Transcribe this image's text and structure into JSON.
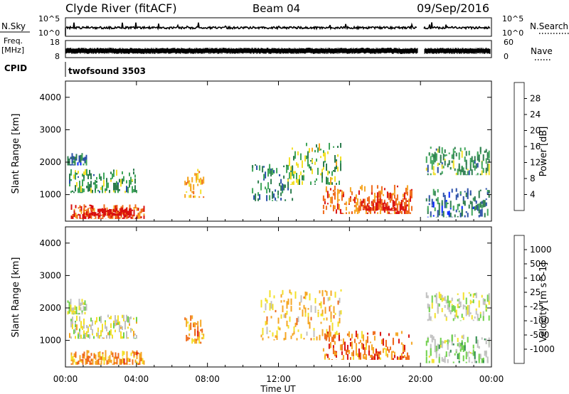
{
  "header": {
    "station": "Clyde River (fitACF)",
    "beam": "Beam 04",
    "date": "09/Sep/2016"
  },
  "left_labels": {
    "nsky": "N.Sky",
    "freq": "Freq.",
    "freq_unit": "[MHz]",
    "cpid": "CPID"
  },
  "right_labels": {
    "nsearch": "N.Search",
    "nave": "Nave"
  },
  "cpid_text": "twofsound 3503",
  "noise_axis": {
    "left_top": "10^5",
    "left_bottom": "10^0",
    "right_top": "10^5",
    "right_bottom": "10^0"
  },
  "freq_axis": {
    "left_top": "18",
    "left_bottom": "8",
    "right_top": "60",
    "right_bottom": "0"
  },
  "x_axis": {
    "ticks": [
      "00:00",
      "04:00",
      "08:00",
      "12:00",
      "16:00",
      "20:00",
      "00:00"
    ],
    "label": "Time UT",
    "range_hours": [
      0,
      24
    ]
  },
  "panels": [
    {
      "id": "power",
      "ylabel": "Slant Range [km]",
      "yticks": [
        "1000",
        "2000",
        "3000",
        "4000"
      ],
      "colorbar_label": "Power [dB]",
      "colorbar_ticks": [
        "4",
        "8",
        "12",
        "16",
        "20",
        "24",
        "28"
      ],
      "colorbar_colors": [
        "#0022ff",
        "#2a4fa8",
        "#2e7d4f",
        "#3fa55a",
        "#f3e02a",
        "#f5a623",
        "#ef6a1a",
        "#d9100e"
      ]
    },
    {
      "id": "velocity",
      "ylabel": "Slant Range [km]",
      "yticks": [
        "1000",
        "2000",
        "3000",
        "4000"
      ],
      "colorbar_label": "Velocity [m s^-1]",
      "colorbar_ticks": [
        "1000",
        "500",
        "100",
        "25",
        "-25",
        "-100",
        "-500",
        "-1000"
      ],
      "colorbar_colors": [
        "#1f3fc0",
        "#2c6e9c",
        "#2e8c4a",
        "#6fd14a",
        "#c0c0c0",
        "#f3e02a",
        "#f5a623",
        "#ef6a1a",
        "#d9100e"
      ]
    }
  ],
  "chart_data": [
    {
      "type": "heatmap",
      "title": "Power [dB]",
      "xlabel": "Time UT",
      "ylabel": "Slant Range [km]",
      "xlim": [
        0,
        24
      ],
      "ylim": [
        180,
        4500
      ],
      "color_scale": [
        0,
        30
      ],
      "regions": [
        {
          "t0": 0.1,
          "t1": 1.2,
          "r0": 1900,
          "r1": 2300,
          "value": 8
        },
        {
          "t0": 0.2,
          "t1": 4.0,
          "r0": 1050,
          "r1": 1800,
          "value": 12
        },
        {
          "t0": 0.3,
          "t1": 4.4,
          "r0": 250,
          "r1": 700,
          "value": 26
        },
        {
          "t0": 1.0,
          "t1": 3.8,
          "r0": 350,
          "r1": 600,
          "value": 29
        },
        {
          "t0": 6.7,
          "t1": 7.8,
          "r0": 900,
          "r1": 1800,
          "value": 20
        },
        {
          "t0": 10.5,
          "t1": 12.8,
          "r0": 800,
          "r1": 2000,
          "value": 10
        },
        {
          "t0": 12.5,
          "t1": 15.5,
          "r0": 1300,
          "r1": 2600,
          "value": 14
        },
        {
          "t0": 14.5,
          "t1": 19.5,
          "r0": 400,
          "r1": 1300,
          "value": 24
        },
        {
          "t0": 16.5,
          "t1": 19.3,
          "r0": 500,
          "r1": 900,
          "value": 28
        },
        {
          "t0": 20.3,
          "t1": 23.9,
          "r0": 1600,
          "r1": 2500,
          "value": 12
        },
        {
          "t0": 20.3,
          "t1": 23.9,
          "r0": 300,
          "r1": 1200,
          "value": 8
        }
      ]
    },
    {
      "type": "heatmap",
      "title": "Velocity [m s^-1]",
      "xlabel": "Time UT",
      "ylabel": "Slant Range [km]",
      "xlim": [
        0,
        24
      ],
      "ylim": [
        180,
        4500
      ],
      "color_scale": [
        -1000,
        1000
      ],
      "regions": [
        {
          "t0": 0.1,
          "t1": 1.2,
          "r0": 1800,
          "r1": 2300,
          "value": 0
        },
        {
          "t0": 0.2,
          "t1": 4.0,
          "r0": 1050,
          "r1": 1800,
          "value": -100
        },
        {
          "t0": 0.3,
          "t1": 4.4,
          "r0": 250,
          "r1": 700,
          "value": -500
        },
        {
          "t0": 6.7,
          "t1": 7.8,
          "r0": 900,
          "r1": 1800,
          "value": -500
        },
        {
          "t0": 11.0,
          "t1": 15.5,
          "r0": 1000,
          "r1": 2600,
          "value": -300
        },
        {
          "t0": 14.5,
          "t1": 19.5,
          "r0": 400,
          "r1": 1300,
          "value": -600
        },
        {
          "t0": 20.3,
          "t1": 23.9,
          "r0": 1600,
          "r1": 2500,
          "value": 0
        },
        {
          "t0": 20.3,
          "t1": 23.9,
          "r0": 300,
          "r1": 1200,
          "value": 100
        }
      ]
    }
  ]
}
